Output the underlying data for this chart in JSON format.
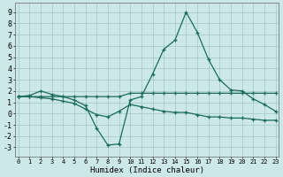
{
  "title": "",
  "xlabel": "Humidex (Indice chaleur)",
  "ylabel": "",
  "background_color": "#cce8e8",
  "grid_color": "#aacccc",
  "line_color": "#1a6b5a",
  "x_ticks": [
    0,
    1,
    2,
    3,
    4,
    5,
    6,
    7,
    8,
    9,
    10,
    11,
    12,
    13,
    14,
    15,
    16,
    17,
    18,
    19,
    20,
    21,
    22,
    23
  ],
  "y_ticks": [
    -3,
    -2,
    -1,
    0,
    1,
    2,
    3,
    4,
    5,
    6,
    7,
    8,
    9
  ],
  "ylim": [
    -3.8,
    9.8
  ],
  "xlim": [
    -0.3,
    23.3
  ],
  "series1_x": [
    0,
    1,
    2,
    3,
    4,
    5,
    6,
    7,
    8,
    9,
    10,
    11,
    12,
    13,
    14,
    15,
    16,
    17,
    18,
    19,
    20,
    21,
    22,
    23
  ],
  "series1_y": [
    1.5,
    1.6,
    2.0,
    1.7,
    1.5,
    1.2,
    0.7,
    -1.3,
    -2.8,
    -2.7,
    1.2,
    1.5,
    3.5,
    5.7,
    6.5,
    9.0,
    7.2,
    4.8,
    3.0,
    2.1,
    2.0,
    1.3,
    0.8,
    0.2
  ],
  "series2_x": [
    0,
    1,
    2,
    3,
    4,
    5,
    6,
    7,
    8,
    9,
    10,
    11,
    12,
    13,
    14,
    15,
    16,
    17,
    18,
    19,
    20,
    21,
    22,
    23
  ],
  "series2_y": [
    1.5,
    1.5,
    1.5,
    1.5,
    1.5,
    1.5,
    1.5,
    1.5,
    1.5,
    1.5,
    1.8,
    1.8,
    1.8,
    1.8,
    1.8,
    1.8,
    1.8,
    1.8,
    1.8,
    1.8,
    1.8,
    1.8,
    1.8,
    1.8
  ],
  "series3_x": [
    0,
    1,
    2,
    3,
    4,
    5,
    6,
    7,
    8,
    9,
    10,
    11,
    12,
    13,
    14,
    15,
    16,
    17,
    18,
    19,
    20,
    21,
    22,
    23
  ],
  "series3_y": [
    1.5,
    1.5,
    1.4,
    1.3,
    1.1,
    0.9,
    0.4,
    -0.1,
    -0.3,
    0.2,
    0.8,
    0.6,
    0.4,
    0.2,
    0.1,
    0.1,
    -0.1,
    -0.3,
    -0.3,
    -0.4,
    -0.4,
    -0.5,
    -0.6,
    -0.6
  ]
}
